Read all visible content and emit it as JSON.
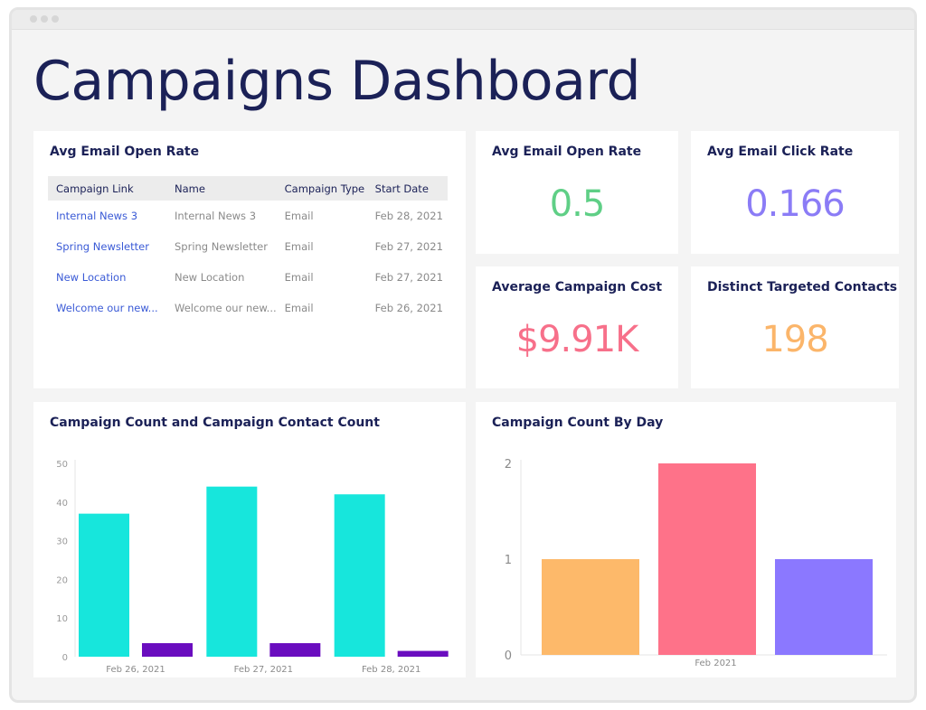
{
  "page_title": "Campaigns Dashboard",
  "table_card": {
    "title": "Avg Email Open Rate",
    "columns": [
      "Campaign Link",
      "Name",
      "Campaign Type",
      "Start Date"
    ],
    "rows": [
      [
        "Internal News 3",
        "Internal News 3",
        "Email",
        "Feb 28, 2021"
      ],
      [
        "Spring Newsletter",
        "Spring Newsletter",
        "Email",
        "Feb 27, 2021"
      ],
      [
        "New Location",
        "New Location",
        "Email",
        "Feb 27, 2021"
      ],
      [
        "Welcome our new...",
        "Welcome our new...",
        "Email",
        "Feb 26, 2021"
      ]
    ]
  },
  "kpis": {
    "open_rate": {
      "title": "Avg Email Open Rate",
      "value": "0.5",
      "color": "#5fcf86"
    },
    "click_rate": {
      "title": "Avg Email Click Rate",
      "value": "0.166",
      "color": "#8b7cf6"
    },
    "campaign_cost": {
      "title": "Average Campaign Cost",
      "value": "$9.91K",
      "color": "#f7708a"
    },
    "targeted_contacts": {
      "title": "Distinct Targeted Contacts",
      "value": "198",
      "color": "#fbb56a"
    }
  },
  "charts": {
    "left_title": "Campaign Count and Campaign Contact Count",
    "right_title": "Campaign Count By Day"
  },
  "chart_data": [
    {
      "type": "bar",
      "title": "Campaign Count and Campaign Contact Count",
      "categories": [
        "Feb 26, 2021",
        "Feb 27, 2021",
        "Feb 28, 2021"
      ],
      "series": [
        {
          "values": [
            37,
            44,
            42
          ],
          "color": "#17e6dc"
        },
        {
          "values": [
            3.5,
            3.5,
            1.5
          ],
          "color": "#6a0dbf"
        }
      ],
      "ylim": [
        0,
        50
      ],
      "yticks": [
        0,
        10,
        20,
        30,
        40,
        50
      ],
      "grid": false
    },
    {
      "type": "bar",
      "title": "Campaign Count By Day",
      "categories": [
        "Feb 2021"
      ],
      "series": [
        {
          "values": [
            1
          ],
          "color": "#fdb96a"
        },
        {
          "values": [
            2
          ],
          "color": "#fe7289"
        },
        {
          "values": [
            1
          ],
          "color": "#8b78ff"
        }
      ],
      "ylim": [
        0,
        2
      ],
      "yticks": [
        0,
        1,
        2
      ],
      "grid": false
    }
  ]
}
